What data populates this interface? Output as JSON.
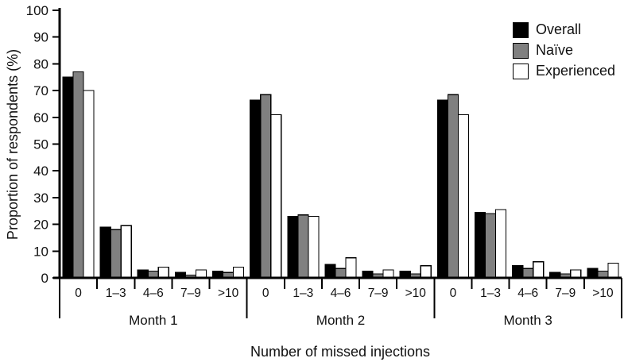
{
  "figure": {
    "background": "#ffffff",
    "text_color": "#111111",
    "axis_color": "#000000"
  },
  "chart_data": {
    "type": "bar",
    "title": "",
    "ylabel": "Proportion of respondents (%)",
    "xlabel": "Number of missed injections",
    "ylim": [
      0,
      100
    ],
    "ytick_step": 10,
    "ytick_labels": [
      "0",
      "10",
      "20",
      "30",
      "40",
      "50",
      "60",
      "70",
      "80",
      "90",
      "100"
    ],
    "grid": false,
    "legend_position": "top-right",
    "group_labels": [
      "Month 1",
      "Month 2",
      "Month 3"
    ],
    "categories": [
      "0",
      "1–3",
      "4–6",
      "7–9",
      ">10"
    ],
    "bar_stroke": "#000000",
    "series": [
      {
        "name": "Overall",
        "color": "#000000",
        "values": [
          [
            75,
            19,
            3,
            2,
            2.5
          ],
          [
            66.5,
            23,
            5,
            2.5,
            2.5
          ],
          [
            66.5,
            24.5,
            4.5,
            2,
            3.5
          ]
        ]
      },
      {
        "name": "Naïve",
        "color": "#808080",
        "values": [
          [
            77,
            18,
            2.5,
            1,
            2
          ],
          [
            68.5,
            23.5,
            3.5,
            1.5,
            1.5
          ],
          [
            68.5,
            24,
            3.5,
            1.5,
            2.5
          ]
        ]
      },
      {
        "name": "Experienced",
        "color": "#ffffff",
        "values": [
          [
            70,
            19.5,
            4,
            3,
            4
          ],
          [
            61,
            23,
            7.5,
            3,
            4.5
          ],
          [
            61,
            25.5,
            6,
            3,
            5.5
          ]
        ]
      }
    ]
  }
}
